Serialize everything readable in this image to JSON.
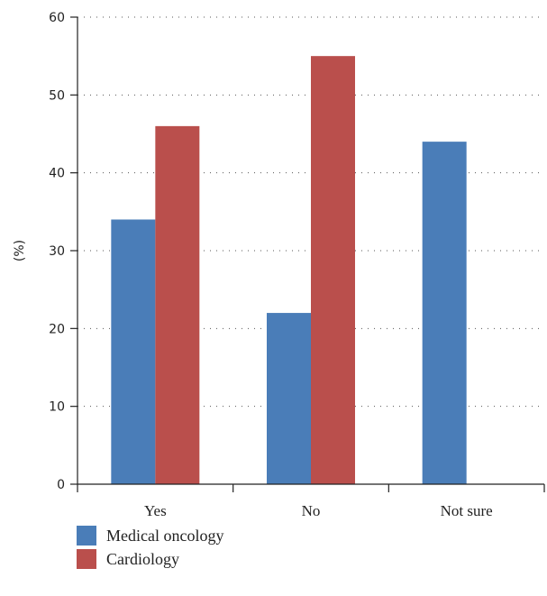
{
  "chart_data": {
    "type": "bar",
    "title": "",
    "xlabel": "",
    "ylabel": "(%)",
    "categories": [
      "Yes",
      "No",
      "Not sure"
    ],
    "ylim": [
      0,
      60
    ],
    "yticks": [
      0,
      10,
      20,
      30,
      40,
      50,
      60
    ],
    "grid": "horizontal dotted",
    "legend_position": "bottom-left",
    "series": [
      {
        "name": "Medical oncology",
        "color": "#4A7DB8",
        "values": [
          34,
          22,
          44
        ]
      },
      {
        "name": "Cardiology",
        "color": "#BA4F4C",
        "values": [
          46,
          55,
          0
        ]
      }
    ]
  }
}
